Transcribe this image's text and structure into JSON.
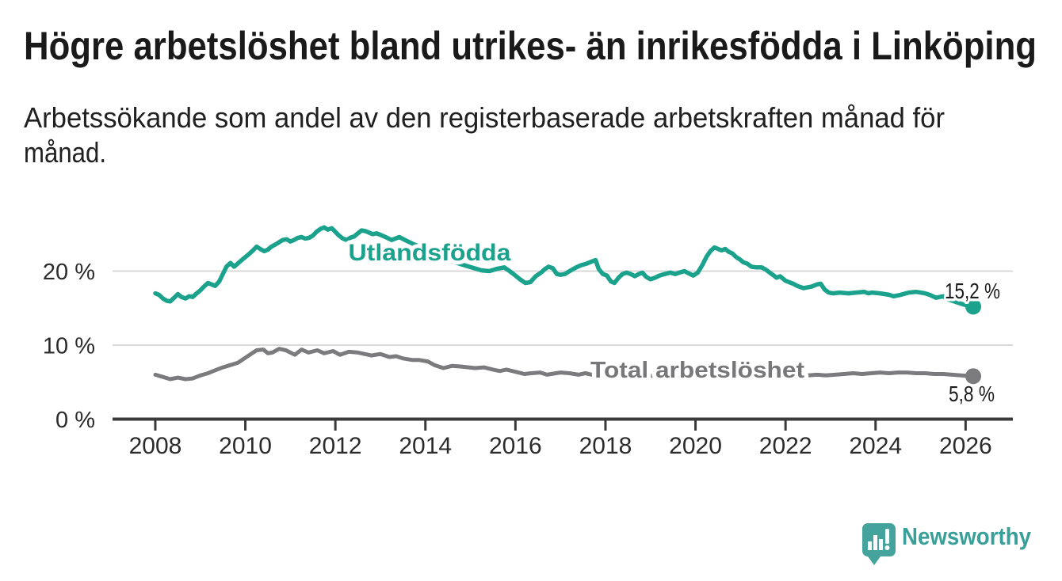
{
  "header": {
    "title": "Högre arbetslöshet bland utrikes- än inrikesfödda i Linköping",
    "subtitle_line1": "Arbetssökande som andel av den registerbaserade arbetskraften månad för",
    "subtitle_line2": "månad."
  },
  "branding": {
    "logo_text": "Newsworthy",
    "logo_icon": "bar-chart-speech-bubble-icon"
  },
  "colors": {
    "foreign_born_line": "#1aa28c",
    "total_line": "#7b7b7e",
    "total_label": "#77777a",
    "title_text": "#1a1a1a",
    "axis": "#3a3a3a",
    "tick_label": "#2b2b2b",
    "gridline": "#d8d8d8",
    "logo_teal": "#3da29b",
    "value_label": "#1b1b1b"
  },
  "chart_data": {
    "type": "line",
    "title": "Högre arbetslöshet bland utrikes- än inrikesfödda i Linköping",
    "subtitle": "Arbetssökande som andel av den registerbaserade arbetskraften månad för månad.",
    "xlabel": "",
    "ylabel": "",
    "xlim": [
      2007.05,
      2027.05
    ],
    "ylim": [
      0,
      28.3
    ],
    "grid": "horizontal",
    "legend_position": "inline-labels",
    "x_ticks": [
      {
        "year": 2008,
        "label": "2008"
      },
      {
        "year": 2010,
        "label": "2010"
      },
      {
        "year": 2012,
        "label": "2012"
      },
      {
        "year": 2014,
        "label": "2014"
      },
      {
        "year": 2016,
        "label": "2016"
      },
      {
        "year": 2018,
        "label": "2018"
      },
      {
        "year": 2020,
        "label": "2020"
      },
      {
        "year": 2022,
        "label": "2022"
      },
      {
        "year": 2024,
        "label": "2024"
      },
      {
        "year": 2026,
        "label": "2026"
      }
    ],
    "y_ticks": [
      {
        "value": 0,
        "label": "0 %"
      },
      {
        "value": 10,
        "label": "10 %"
      },
      {
        "value": 20,
        "label": "20 %"
      }
    ],
    "series": [
      {
        "name": "Total arbetslöshet",
        "color": "#7b7b7e",
        "label_color": "#77777a",
        "end_value": 5.8,
        "end_label": "5,8 %",
        "points": [
          [
            2008.0,
            6.0
          ],
          [
            2008.17,
            5.7
          ],
          [
            2008.33,
            5.4
          ],
          [
            2008.5,
            5.6
          ],
          [
            2008.67,
            5.4
          ],
          [
            2008.83,
            5.5
          ],
          [
            2009.0,
            5.9
          ],
          [
            2009.17,
            6.2
          ],
          [
            2009.33,
            6.6
          ],
          [
            2009.5,
            7.0
          ],
          [
            2009.67,
            7.3
          ],
          [
            2009.83,
            7.6
          ],
          [
            2010.0,
            8.3
          ],
          [
            2010.1,
            8.7
          ],
          [
            2010.25,
            9.3
          ],
          [
            2010.4,
            9.4
          ],
          [
            2010.5,
            8.9
          ],
          [
            2010.6,
            9.0
          ],
          [
            2010.75,
            9.5
          ],
          [
            2010.9,
            9.3
          ],
          [
            2011.1,
            8.7
          ],
          [
            2011.25,
            9.4
          ],
          [
            2011.4,
            9.0
          ],
          [
            2011.6,
            9.3
          ],
          [
            2011.75,
            8.9
          ],
          [
            2011.95,
            9.2
          ],
          [
            2012.1,
            8.7
          ],
          [
            2012.3,
            9.1
          ],
          [
            2012.5,
            9.0
          ],
          [
            2012.65,
            8.8
          ],
          [
            2012.8,
            8.6
          ],
          [
            2013.0,
            8.8
          ],
          [
            2013.2,
            8.4
          ],
          [
            2013.35,
            8.5
          ],
          [
            2013.5,
            8.2
          ],
          [
            2013.7,
            8.0
          ],
          [
            2013.85,
            8.0
          ],
          [
            2014.05,
            7.8
          ],
          [
            2014.2,
            7.3
          ],
          [
            2014.4,
            6.9
          ],
          [
            2014.6,
            7.2
          ],
          [
            2014.8,
            7.1
          ],
          [
            2015.1,
            6.9
          ],
          [
            2015.3,
            7.0
          ],
          [
            2015.5,
            6.7
          ],
          [
            2015.65,
            6.5
          ],
          [
            2015.8,
            6.7
          ],
          [
            2016.0,
            6.4
          ],
          [
            2016.2,
            6.1
          ],
          [
            2016.35,
            6.2
          ],
          [
            2016.55,
            6.3
          ],
          [
            2016.7,
            6.0
          ],
          [
            2016.9,
            6.2
          ],
          [
            2017.0,
            6.3
          ],
          [
            2017.2,
            6.2
          ],
          [
            2017.4,
            6.0
          ],
          [
            2017.55,
            6.2
          ],
          [
            2017.7,
            6.0
          ],
          [
            2018.0,
            6.0
          ],
          [
            2018.3,
            5.9
          ],
          [
            2018.6,
            6.0
          ],
          [
            2018.9,
            5.8
          ],
          [
            2019.2,
            5.9
          ],
          [
            2019.5,
            6.0
          ],
          [
            2019.8,
            6.1
          ],
          [
            2020.1,
            6.4
          ],
          [
            2020.35,
            6.8
          ],
          [
            2020.6,
            7.0
          ],
          [
            2020.85,
            6.9
          ],
          [
            2021.1,
            6.5
          ],
          [
            2021.35,
            6.2
          ],
          [
            2021.55,
            6.0
          ],
          [
            2021.7,
            5.9
          ],
          [
            2021.9,
            6.0
          ],
          [
            2022.1,
            5.9
          ],
          [
            2022.3,
            6.0
          ],
          [
            2022.5,
            5.9
          ],
          [
            2022.7,
            6.0
          ],
          [
            2022.9,
            5.9
          ],
          [
            2023.1,
            6.0
          ],
          [
            2023.3,
            6.1
          ],
          [
            2023.5,
            6.2
          ],
          [
            2023.7,
            6.1
          ],
          [
            2023.9,
            6.2
          ],
          [
            2024.1,
            6.3
          ],
          [
            2024.3,
            6.2
          ],
          [
            2024.5,
            6.3
          ],
          [
            2024.7,
            6.3
          ],
          [
            2024.9,
            6.2
          ],
          [
            2025.1,
            6.2
          ],
          [
            2025.3,
            6.1
          ],
          [
            2025.5,
            6.1
          ],
          [
            2025.7,
            6.0
          ],
          [
            2025.9,
            5.9
          ],
          [
            2026.17,
            5.8
          ]
        ]
      },
      {
        "name": "Utlandsfödda",
        "color": "#1aa28c",
        "label_color": "#1aa28c",
        "end_value": 15.2,
        "end_label": "15,2 %",
        "points": [
          [
            2008.0,
            17.0
          ],
          [
            2008.08,
            16.8
          ],
          [
            2008.17,
            16.3
          ],
          [
            2008.25,
            16.0
          ],
          [
            2008.33,
            15.9
          ],
          [
            2008.42,
            16.4
          ],
          [
            2008.5,
            16.9
          ],
          [
            2008.58,
            16.5
          ],
          [
            2008.67,
            16.3
          ],
          [
            2008.75,
            16.6
          ],
          [
            2008.83,
            16.5
          ],
          [
            2008.92,
            17.0
          ],
          [
            2009.0,
            17.4
          ],
          [
            2009.08,
            17.9
          ],
          [
            2009.17,
            18.4
          ],
          [
            2009.25,
            18.2
          ],
          [
            2009.33,
            18.0
          ],
          [
            2009.42,
            18.6
          ],
          [
            2009.5,
            19.6
          ],
          [
            2009.58,
            20.6
          ],
          [
            2009.67,
            21.1
          ],
          [
            2009.75,
            20.6
          ],
          [
            2009.83,
            21.0
          ],
          [
            2009.92,
            21.5
          ],
          [
            2010.0,
            21.9
          ],
          [
            2010.08,
            22.3
          ],
          [
            2010.17,
            22.8
          ],
          [
            2010.25,
            23.3
          ],
          [
            2010.33,
            23.0
          ],
          [
            2010.42,
            22.7
          ],
          [
            2010.5,
            22.9
          ],
          [
            2010.58,
            23.3
          ],
          [
            2010.67,
            23.6
          ],
          [
            2010.75,
            23.9
          ],
          [
            2010.83,
            24.2
          ],
          [
            2010.92,
            24.3
          ],
          [
            2011.0,
            24.0
          ],
          [
            2011.08,
            24.2
          ],
          [
            2011.17,
            24.5
          ],
          [
            2011.25,
            24.6
          ],
          [
            2011.33,
            24.4
          ],
          [
            2011.42,
            24.5
          ],
          [
            2011.5,
            24.8
          ],
          [
            2011.58,
            25.3
          ],
          [
            2011.67,
            25.7
          ],
          [
            2011.75,
            25.9
          ],
          [
            2011.83,
            25.6
          ],
          [
            2011.92,
            25.8
          ],
          [
            2012.0,
            25.3
          ],
          [
            2012.08,
            24.8
          ],
          [
            2012.17,
            24.4
          ],
          [
            2012.25,
            24.2
          ],
          [
            2012.33,
            24.5
          ],
          [
            2012.42,
            24.7
          ],
          [
            2012.5,
            25.1
          ],
          [
            2012.58,
            25.5
          ],
          [
            2012.67,
            25.4
          ],
          [
            2012.75,
            25.2
          ],
          [
            2012.83,
            25.0
          ],
          [
            2012.92,
            25.1
          ],
          [
            2013.0,
            24.9
          ],
          [
            2013.08,
            24.7
          ],
          [
            2013.25,
            24.2
          ],
          [
            2013.42,
            24.6
          ],
          [
            2013.58,
            24.1
          ],
          [
            2013.75,
            23.6
          ],
          [
            2013.92,
            23.2
          ],
          [
            2014.08,
            22.8
          ],
          [
            2014.25,
            22.3
          ],
          [
            2014.42,
            21.8
          ],
          [
            2014.58,
            21.4
          ],
          [
            2014.75,
            21.0
          ],
          [
            2014.92,
            20.7
          ],
          [
            2015.08,
            20.4
          ],
          [
            2015.25,
            20.1
          ],
          [
            2015.42,
            20.0
          ],
          [
            2015.58,
            20.3
          ],
          [
            2015.75,
            20.5
          ],
          [
            2015.87,
            20.0
          ],
          [
            2015.98,
            19.5
          ],
          [
            2016.1,
            18.9
          ],
          [
            2016.22,
            18.4
          ],
          [
            2016.33,
            18.5
          ],
          [
            2016.45,
            19.3
          ],
          [
            2016.57,
            19.8
          ],
          [
            2016.66,
            20.3
          ],
          [
            2016.74,
            20.6
          ],
          [
            2016.83,
            20.4
          ],
          [
            2016.92,
            19.6
          ],
          [
            2017.0,
            19.5
          ],
          [
            2017.1,
            19.6
          ],
          [
            2017.23,
            20.1
          ],
          [
            2017.35,
            20.5
          ],
          [
            2017.46,
            20.8
          ],
          [
            2017.58,
            21.0
          ],
          [
            2017.7,
            21.3
          ],
          [
            2017.78,
            21.5
          ],
          [
            2017.85,
            20.3
          ],
          [
            2017.94,
            19.6
          ],
          [
            2018.03,
            19.4
          ],
          [
            2018.12,
            18.6
          ],
          [
            2018.2,
            18.4
          ],
          [
            2018.29,
            19.1
          ],
          [
            2018.38,
            19.6
          ],
          [
            2018.47,
            19.8
          ],
          [
            2018.56,
            19.6
          ],
          [
            2018.65,
            19.3
          ],
          [
            2018.74,
            19.6
          ],
          [
            2018.82,
            19.8
          ],
          [
            2018.91,
            19.2
          ],
          [
            2019.0,
            18.9
          ],
          [
            2019.1,
            19.1
          ],
          [
            2019.2,
            19.4
          ],
          [
            2019.32,
            19.6
          ],
          [
            2019.44,
            19.8
          ],
          [
            2019.55,
            19.6
          ],
          [
            2019.64,
            19.8
          ],
          [
            2019.75,
            20.0
          ],
          [
            2019.85,
            19.7
          ],
          [
            2019.95,
            19.4
          ],
          [
            2020.05,
            19.8
          ],
          [
            2020.15,
            20.8
          ],
          [
            2020.25,
            22.0
          ],
          [
            2020.33,
            22.7
          ],
          [
            2020.42,
            23.2
          ],
          [
            2020.5,
            23.0
          ],
          [
            2020.58,
            22.8
          ],
          [
            2020.66,
            23.0
          ],
          [
            2020.74,
            22.6
          ],
          [
            2020.82,
            22.4
          ],
          [
            2020.9,
            21.9
          ],
          [
            2020.98,
            21.6
          ],
          [
            2021.06,
            21.2
          ],
          [
            2021.15,
            21.0
          ],
          [
            2021.24,
            20.6
          ],
          [
            2021.35,
            20.5
          ],
          [
            2021.47,
            20.5
          ],
          [
            2021.56,
            20.2
          ],
          [
            2021.65,
            19.8
          ],
          [
            2021.74,
            19.4
          ],
          [
            2021.8,
            19.1
          ],
          [
            2021.88,
            19.3
          ],
          [
            2022.0,
            18.7
          ],
          [
            2022.08,
            18.5
          ],
          [
            2022.17,
            18.3
          ],
          [
            2022.26,
            18.0
          ],
          [
            2022.4,
            17.7
          ],
          [
            2022.58,
            17.9
          ],
          [
            2022.7,
            18.2
          ],
          [
            2022.78,
            18.3
          ],
          [
            2022.87,
            17.5
          ],
          [
            2022.96,
            17.1
          ],
          [
            2023.05,
            17.0
          ],
          [
            2023.2,
            17.1
          ],
          [
            2023.4,
            17.0
          ],
          [
            2023.57,
            17.1
          ],
          [
            2023.75,
            17.2
          ],
          [
            2023.84,
            17.0
          ],
          [
            2023.92,
            17.1
          ],
          [
            2024.1,
            17.0
          ],
          [
            2024.3,
            16.8
          ],
          [
            2024.4,
            16.6
          ],
          [
            2024.56,
            16.8
          ],
          [
            2024.74,
            17.1
          ],
          [
            2024.9,
            17.2
          ],
          [
            2025.1,
            17.0
          ],
          [
            2025.2,
            16.8
          ],
          [
            2025.34,
            16.4
          ],
          [
            2025.5,
            16.6
          ],
          [
            2025.6,
            16.2
          ],
          [
            2025.8,
            15.8
          ],
          [
            2025.95,
            15.5
          ],
          [
            2026.17,
            15.2
          ]
        ]
      }
    ]
  }
}
